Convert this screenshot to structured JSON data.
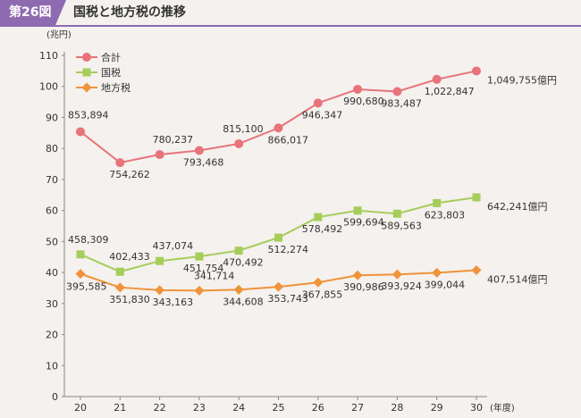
{
  "header": {
    "figure_label": "第26図",
    "title": "国税と地方税の推移"
  },
  "chart_data": {
    "type": "line",
    "title": "国税と地方税の推移",
    "ylabel": "(兆円)",
    "xlabel": "(年度)",
    "ylim": [
      0,
      110
    ],
    "yticks": [
      0,
      10,
      20,
      30,
      40,
      50,
      60,
      70,
      80,
      90,
      100,
      110
    ],
    "x": [
      20,
      21,
      22,
      23,
      24,
      25,
      26,
      27,
      28,
      29,
      30
    ],
    "x_tick_labels": [
      "20",
      "21",
      "22",
      "23",
      "24",
      "25",
      "26",
      "27",
      "28",
      "29",
      "30"
    ],
    "grid": false,
    "legend": "top-left",
    "unit_suffix": "億円",
    "series": [
      {
        "name": "合計",
        "color": "#e8737a",
        "marker": "circle",
        "values": [
          85.3894,
          75.4262,
          78.0237,
          79.3468,
          81.51,
          86.6017,
          94.6347,
          99.068,
          98.3487,
          102.2847,
          104.9755
        ],
        "labels": [
          "853,894",
          "754,262",
          "780,237",
          "793,468",
          "815,100",
          "866,017",
          "946,347",
          "990,680",
          "983,487",
          "1,022,847",
          "1,049,755"
        ]
      },
      {
        "name": "国税",
        "color": "#a6cd5a",
        "marker": "square",
        "values": [
          45.8309,
          40.2433,
          43.7074,
          45.1754,
          47.0492,
          51.2274,
          57.8492,
          59.9694,
          58.9563,
          62.3803,
          64.2241
        ],
        "labels": [
          "458,309",
          "402,433",
          "437,074",
          "451,754",
          "470,492",
          "512,274",
          "578,492",
          "599,694",
          "589,563",
          "623,803",
          "642,241"
        ]
      },
      {
        "name": "地方税",
        "color": "#f0933a",
        "marker": "diamond",
        "values": [
          39.5585,
          35.183,
          34.3163,
          34.1714,
          34.4608,
          35.3743,
          36.7855,
          39.0986,
          39.3924,
          39.9044,
          40.7514
        ],
        "labels": [
          "395,585",
          "351,830",
          "343,163",
          "341,714",
          "344,608",
          "353,743",
          "367,855",
          "390,986",
          "393,924",
          "399,044",
          "407,514"
        ]
      }
    ]
  }
}
